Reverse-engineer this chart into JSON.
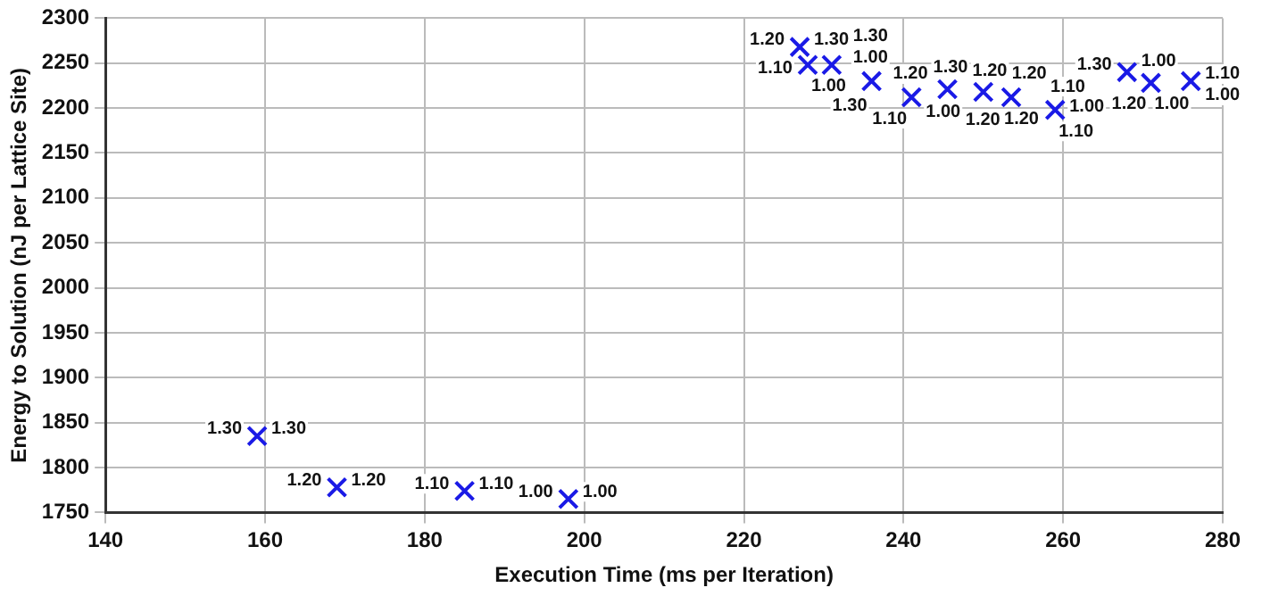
{
  "chart_data": {
    "type": "scatter",
    "xlabel": "Execution Time (ms per Iteration)",
    "ylabel": "Energy to Solution (nJ per Lattice Site)",
    "x": [
      159,
      169,
      185,
      198,
      227,
      228,
      231,
      236,
      241,
      245.5,
      250,
      253.5,
      259,
      268,
      271,
      276
    ],
    "series": [
      {
        "color": "#1a1ae6",
        "values": [
          1835,
          1778,
          1774,
          1765,
          2268,
          2248,
          2248,
          2230,
          2212,
          2221,
          2218,
          2212,
          2198,
          2240,
          2228,
          2230
        ]
      }
    ],
    "xlim": [
      140,
      280
    ],
    "xticks": [
      140,
      160,
      180,
      200,
      220,
      240,
      260,
      280
    ],
    "ylim": [
      1750,
      2300
    ],
    "yticks": [
      1750,
      1800,
      1850,
      1900,
      1950,
      2000,
      2050,
      2100,
      2150,
      2200,
      2250,
      2300
    ],
    "grid": true,
    "legend": false,
    "marker": "cross",
    "annotations": [
      {
        "text": "1.30",
        "x": 159,
        "y": 1835
      },
      {
        "text": "1.30",
        "x": 159,
        "y": 1835
      },
      {
        "text": "1.20",
        "x": 169,
        "y": 1778
      },
      {
        "text": "1.20",
        "x": 169,
        "y": 1778
      },
      {
        "text": "1.10",
        "x": 185,
        "y": 1774
      },
      {
        "text": "1.10",
        "x": 185,
        "y": 1774
      },
      {
        "text": "1.00",
        "x": 198,
        "y": 1765
      },
      {
        "text": "1.00",
        "x": 198,
        "y": 1765
      },
      {
        "text": "1.20",
        "x": 227,
        "y": 2268
      },
      {
        "text": "1.30",
        "x": 227,
        "y": 2268
      },
      {
        "text": "1.10",
        "x": 228,
        "y": 2248
      },
      {
        "text": "1.00",
        "x": 228,
        "y": 2248
      },
      {
        "text": "1.00",
        "x": 231,
        "y": 2248
      },
      {
        "text": "1.30",
        "x": 231,
        "y": 2248
      },
      {
        "text": "1.30",
        "x": 236,
        "y": 2230
      },
      {
        "text": "1.20",
        "x": 236,
        "y": 2230
      },
      {
        "text": "1.10",
        "x": 241,
        "y": 2212
      },
      {
        "text": "1.00",
        "x": 241,
        "y": 2212
      },
      {
        "text": "1.30",
        "x": 245.5,
        "y": 2221
      },
      {
        "text": "1.20",
        "x": 245.5,
        "y": 2221
      },
      {
        "text": "1.20",
        "x": 250,
        "y": 2218
      },
      {
        "text": "1.20",
        "x": 250,
        "y": 2218
      },
      {
        "text": "1.20",
        "x": 253.5,
        "y": 2212
      },
      {
        "text": "1.10",
        "x": 253.5,
        "y": 2212
      },
      {
        "text": "1.00",
        "x": 259,
        "y": 2198
      },
      {
        "text": "1.10",
        "x": 259,
        "y": 2198
      },
      {
        "text": "1.30",
        "x": 268,
        "y": 2240
      },
      {
        "text": "1.00",
        "x": 268,
        "y": 2240
      },
      {
        "text": "1.20",
        "x": 271,
        "y": 2228
      },
      {
        "text": "1.00",
        "x": 271,
        "y": 2228
      },
      {
        "text": "1.10",
        "x": 276,
        "y": 2230
      },
      {
        "text": "1.00",
        "x": 276,
        "y": 2230
      }
    ]
  }
}
